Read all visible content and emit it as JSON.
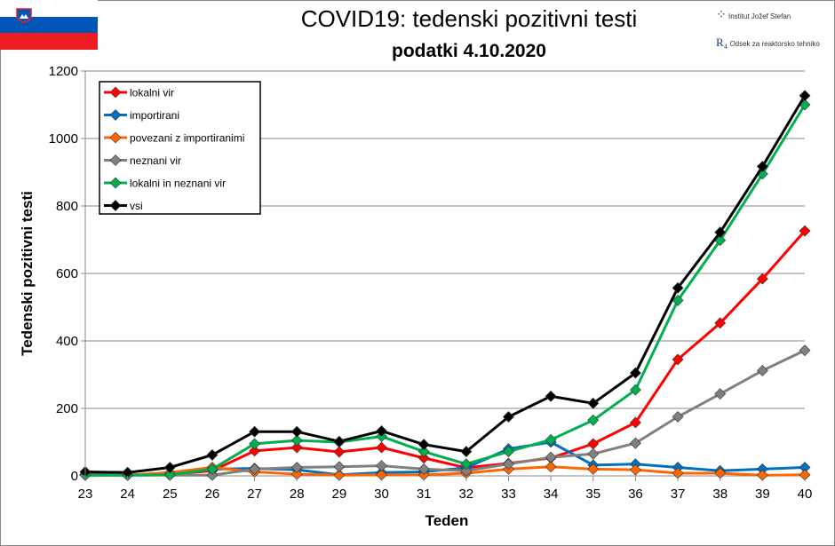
{
  "header": {
    "title": "COVID19: tedenski pozitivni testi",
    "subtitle": "podatki 4.10.2020",
    "logo1_text": "Institut Jožef Stefan",
    "logo2_text": "Odsek za reaktorsko tehniko",
    "flag": "slovenia-flag"
  },
  "chart_data": {
    "type": "line",
    "title": "COVID19: tedenski pozitivni testi",
    "xlabel": "Teden",
    "ylabel": "Tedenski pozitivni testi",
    "x": [
      23,
      24,
      25,
      26,
      27,
      28,
      29,
      30,
      31,
      32,
      33,
      34,
      35,
      36,
      37,
      38,
      39,
      40
    ],
    "ylim": [
      0,
      1200
    ],
    "yticks": [
      0,
      200,
      400,
      600,
      800,
      1000,
      1200
    ],
    "grid": true,
    "legend": "top-left",
    "series": [
      {
        "name": "lokalni vir",
        "color": "#ff0000",
        "values": [
          5,
          3,
          5,
          15,
          74,
          84,
          71,
          84,
          53,
          24,
          37,
          53,
          95,
          158,
          345,
          453,
          584,
          726
        ]
      },
      {
        "name": "importirani",
        "color": "#0070c0",
        "values": [
          3,
          2,
          5,
          20,
          22,
          18,
          3,
          10,
          12,
          24,
          80,
          100,
          32,
          35,
          25,
          15,
          20,
          25
        ]
      },
      {
        "name": "povezani z importiranimi",
        "color": "#ff6600",
        "values": [
          2,
          2,
          10,
          25,
          12,
          5,
          2,
          3,
          3,
          8,
          20,
          27,
          20,
          18,
          8,
          8,
          2,
          3
        ]
      },
      {
        "name": "neznani vir",
        "color": "#808080",
        "values": [
          2,
          2,
          2,
          2,
          20,
          25,
          27,
          30,
          20,
          15,
          35,
          55,
          65,
          97,
          175,
          243,
          312,
          372
        ]
      },
      {
        "name": "lokalni in neznani vir",
        "color": "#00b050",
        "values": [
          2,
          2,
          3,
          20,
          95,
          105,
          100,
          117,
          72,
          35,
          72,
          107,
          165,
          255,
          520,
          698,
          895,
          1100
        ]
      },
      {
        "name": "vsi",
        "color": "#000000",
        "values": [
          12,
          10,
          25,
          62,
          131,
          131,
          102,
          133,
          93,
          72,
          175,
          236,
          215,
          305,
          557,
          722,
          917,
          1127
        ]
      }
    ]
  }
}
